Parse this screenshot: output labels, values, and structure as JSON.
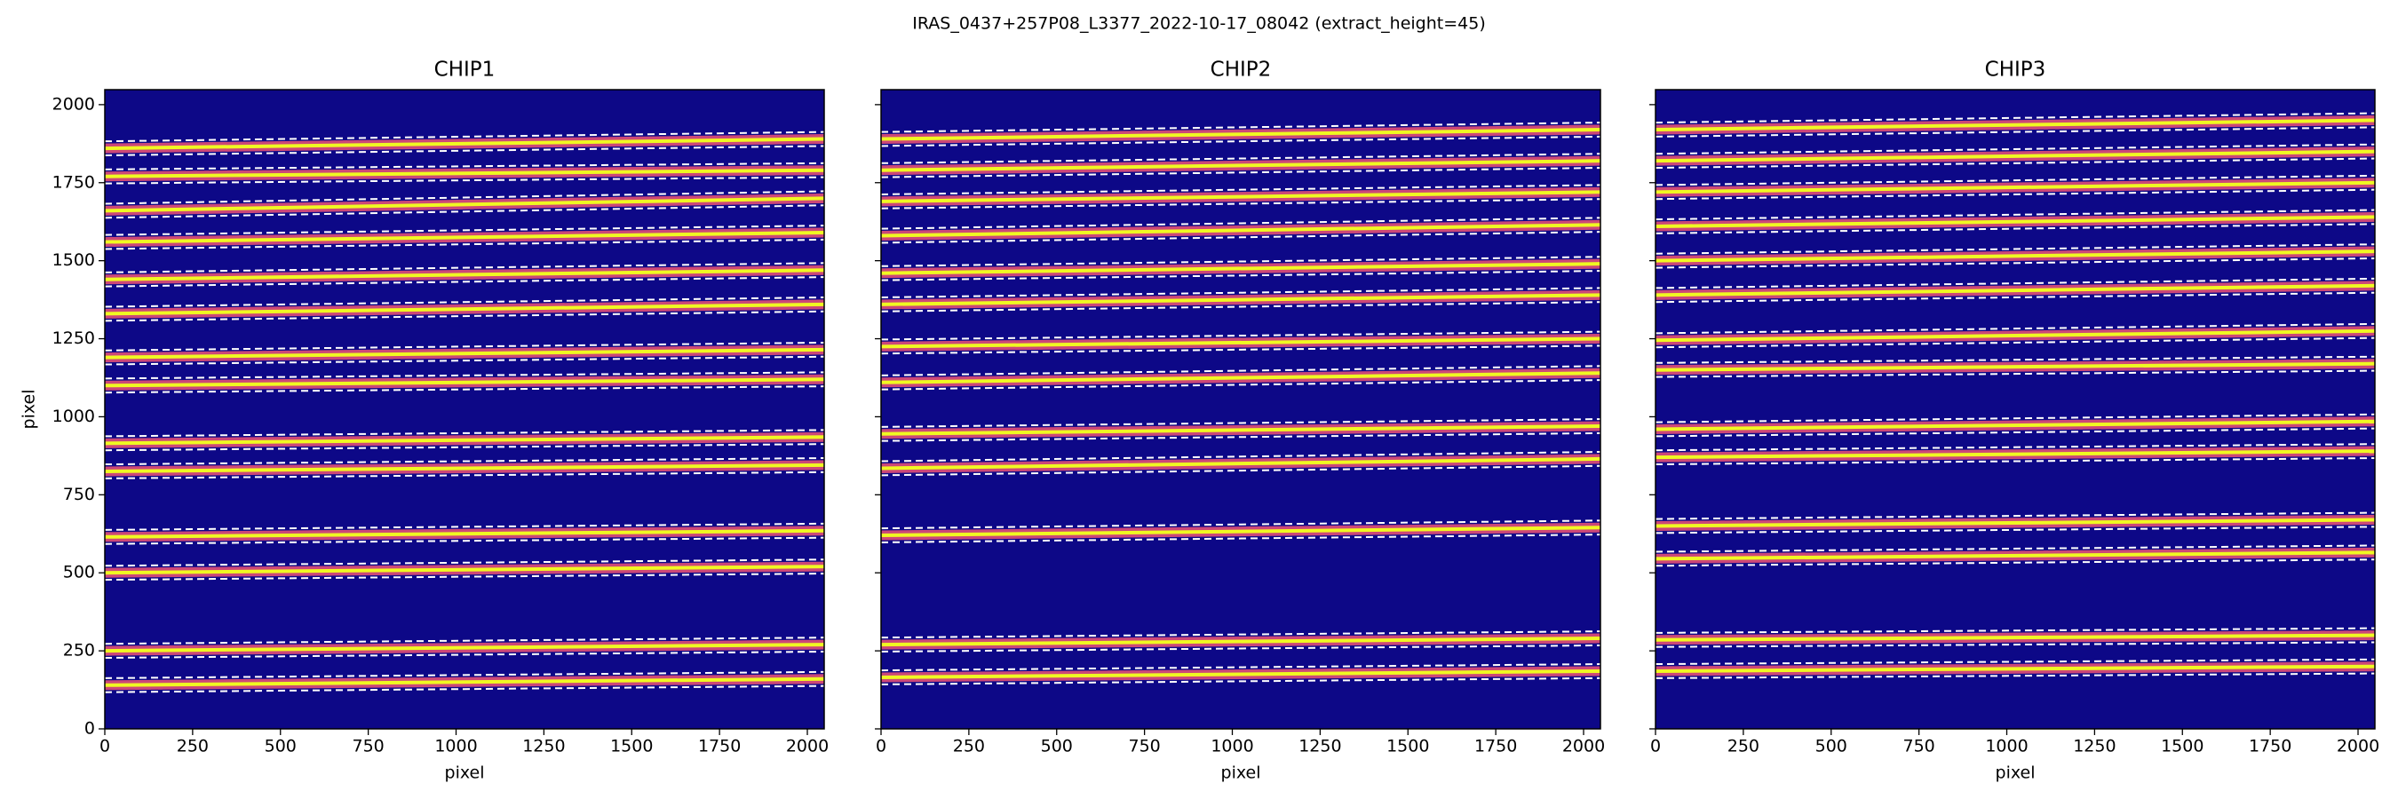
{
  "chart_data": {
    "type": "image",
    "title": "IRAS_0437+257P08_L3377_2022-10-17_08042  (extract_height=45)",
    "extract_height": 45,
    "xlabel": "pixel",
    "ylabel": "pixel",
    "xlim": [
      0,
      2048
    ],
    "ylim": [
      0,
      2048
    ],
    "xticks": [
      0,
      250,
      500,
      750,
      1000,
      1250,
      1500,
      1750,
      2000
    ],
    "yticks": [
      0,
      250,
      500,
      750,
      1000,
      1250,
      1500,
      1750,
      2000
    ],
    "background_color": "#0d0887",
    "trace_color": "#f0f921",
    "trace_edge_color": "#cc4778",
    "bound_color": "#ffffff",
    "panels": [
      {
        "title": "CHIP1",
        "traces_left": [
          140,
          250,
          500,
          615,
          825,
          915,
          1100,
          1190,
          1330,
          1440,
          1560,
          1660,
          1770,
          1860
        ],
        "traces_right": [
          160,
          270,
          520,
          635,
          845,
          935,
          1120,
          1215,
          1360,
          1470,
          1590,
          1700,
          1790,
          1890
        ]
      },
      {
        "title": "CHIP2",
        "traces_left": [
          165,
          270,
          620,
          835,
          945,
          1110,
          1225,
          1360,
          1460,
          1580,
          1690,
          1790,
          1890
        ],
        "traces_right": [
          185,
          290,
          645,
          865,
          970,
          1140,
          1250,
          1390,
          1490,
          1615,
          1720,
          1820,
          1920
        ]
      },
      {
        "title": "CHIP3",
        "traces_left": [
          185,
          285,
          545,
          650,
          870,
          960,
          1150,
          1245,
          1390,
          1500,
          1610,
          1720,
          1820,
          1920
        ],
        "traces_right": [
          200,
          300,
          565,
          670,
          890,
          985,
          1170,
          1275,
          1420,
          1530,
          1640,
          1750,
          1850,
          1950
        ]
      }
    ]
  }
}
